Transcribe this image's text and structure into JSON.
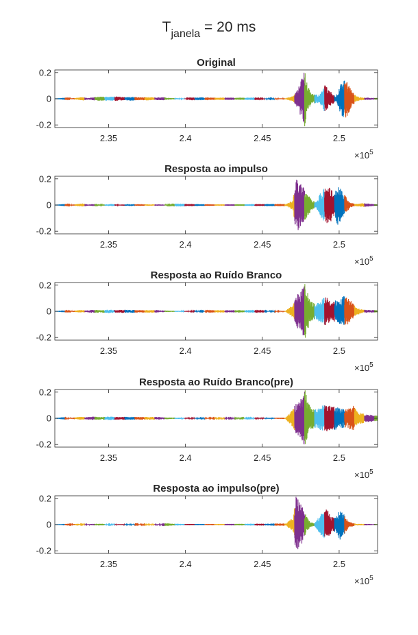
{
  "figure": {
    "title_main": "T",
    "title_sub": "janela",
    "title_rest": " = 20 ms"
  },
  "axes_common": {
    "xlim": [
      231500,
      252500
    ],
    "ylim": [
      -0.22,
      0.22
    ],
    "x_ticks": [
      235000,
      240000,
      245000,
      250000
    ],
    "x_tick_labels": [
      "2.35",
      "2.4",
      "2.45",
      "2.5"
    ],
    "y_ticks": [
      0.2,
      0,
      -0.2
    ],
    "y_tick_labels": [
      "0.2",
      "0",
      "-0.2"
    ],
    "x_exponent_prefix": "×10",
    "x_exponent_power": "5",
    "grid": false
  },
  "segment_colors": [
    "#0072BD",
    "#D95319",
    "#EDB120",
    "#7E2F8E",
    "#77AC30",
    "#4DBEEE",
    "#A2142F"
  ],
  "chart_data": [
    {
      "type": "line",
      "title": "Original",
      "envelope": [
        [
          231500,
          0.0
        ],
        [
          232500,
          0.003
        ],
        [
          233000,
          0.008
        ],
        [
          233300,
          0.014
        ],
        [
          233700,
          0.006
        ],
        [
          234000,
          0.012
        ],
        [
          234500,
          0.016
        ],
        [
          235000,
          0.014
        ],
        [
          235500,
          0.018
        ],
        [
          236000,
          0.012
        ],
        [
          236500,
          0.015
        ],
        [
          237000,
          0.011
        ],
        [
          237500,
          0.013
        ],
        [
          238000,
          0.01
        ],
        [
          238500,
          0.012
        ],
        [
          239000,
          0.006
        ],
        [
          240000,
          0.003
        ],
        [
          242000,
          0.002
        ],
        [
          244000,
          0.002
        ],
        [
          246500,
          0.004
        ],
        [
          247000,
          0.02
        ],
        [
          247300,
          0.07
        ],
        [
          247550,
          0.15
        ],
        [
          247750,
          0.22
        ],
        [
          247950,
          0.1
        ],
        [
          248200,
          0.04
        ],
        [
          248700,
          0.03
        ],
        [
          249100,
          0.11
        ],
        [
          249400,
          0.06
        ],
        [
          249800,
          0.02
        ],
        [
          250100,
          0.12
        ],
        [
          250400,
          0.16
        ],
        [
          250700,
          0.09
        ],
        [
          251100,
          0.02
        ],
        [
          251500,
          0.01
        ],
        [
          252500,
          0.006
        ]
      ]
    },
    {
      "type": "line",
      "title": "Resposta ao impulso",
      "envelope": [
        [
          231500,
          0.0
        ],
        [
          232500,
          0.003
        ],
        [
          233300,
          0.012
        ],
        [
          233700,
          0.004
        ],
        [
          234200,
          0.01
        ],
        [
          234500,
          0.003
        ],
        [
          235200,
          0.009
        ],
        [
          235600,
          0.003
        ],
        [
          236300,
          0.007
        ],
        [
          237300,
          0.006
        ],
        [
          238300,
          0.005
        ],
        [
          239000,
          0.003
        ],
        [
          240000,
          0.002
        ],
        [
          242000,
          0.001
        ],
        [
          246500,
          0.002
        ],
        [
          247000,
          0.04
        ],
        [
          247200,
          0.22
        ],
        [
          247700,
          0.13
        ],
        [
          248000,
          0.08
        ],
        [
          248200,
          0.04
        ],
        [
          248500,
          0.02
        ],
        [
          248800,
          0.1
        ],
        [
          249300,
          0.16
        ],
        [
          249700,
          0.08
        ],
        [
          249900,
          0.16
        ],
        [
          250300,
          0.09
        ],
        [
          250700,
          0.02
        ],
        [
          251000,
          0.01
        ],
        [
          251600,
          0.015
        ],
        [
          252200,
          0.008
        ],
        [
          252500,
          0.004
        ]
      ]
    },
    {
      "type": "line",
      "title": "Resposta ao Ruído Branco",
      "envelope": [
        [
          231500,
          0.0
        ],
        [
          232500,
          0.003
        ],
        [
          233200,
          0.01
        ],
        [
          233500,
          0.007
        ],
        [
          234000,
          0.012
        ],
        [
          234500,
          0.009
        ],
        [
          235000,
          0.013
        ],
        [
          235500,
          0.01
        ],
        [
          236000,
          0.012
        ],
        [
          237000,
          0.009
        ],
        [
          238000,
          0.01
        ],
        [
          239000,
          0.005
        ],
        [
          240000,
          0.004
        ],
        [
          242000,
          0.002
        ],
        [
          244000,
          0.002
        ],
        [
          246500,
          0.004
        ],
        [
          247000,
          0.05
        ],
        [
          247200,
          0.12
        ],
        [
          247500,
          0.15
        ],
        [
          247800,
          0.22
        ],
        [
          248100,
          0.08
        ],
        [
          248500,
          0.06
        ],
        [
          248900,
          0.1
        ],
        [
          249200,
          0.11
        ],
        [
          249500,
          0.07
        ],
        [
          249900,
          0.09
        ],
        [
          250300,
          0.12
        ],
        [
          250700,
          0.09
        ],
        [
          251100,
          0.03
        ],
        [
          251600,
          0.012
        ],
        [
          252500,
          0.008
        ]
      ]
    },
    {
      "type": "line",
      "title": "Resposta ao Ruído Branco(pre)",
      "envelope": [
        [
          231500,
          0.0
        ],
        [
          232500,
          0.004
        ],
        [
          233200,
          0.012
        ],
        [
          233500,
          0.008
        ],
        [
          234000,
          0.013
        ],
        [
          234500,
          0.009
        ],
        [
          235000,
          0.014
        ],
        [
          235500,
          0.01
        ],
        [
          236000,
          0.012
        ],
        [
          237000,
          0.01
        ],
        [
          238000,
          0.011
        ],
        [
          239000,
          0.006
        ],
        [
          240000,
          0.004
        ],
        [
          242000,
          0.003
        ],
        [
          244000,
          0.003
        ],
        [
          246500,
          0.005
        ],
        [
          247000,
          0.07
        ],
        [
          247200,
          0.12
        ],
        [
          247500,
          0.15
        ],
        [
          247800,
          0.22
        ],
        [
          248100,
          0.09
        ],
        [
          248500,
          0.07
        ],
        [
          248900,
          0.1
        ],
        [
          249300,
          0.1
        ],
        [
          249700,
          0.09
        ],
        [
          250100,
          0.08
        ],
        [
          250500,
          0.07
        ],
        [
          250900,
          0.1
        ],
        [
          251200,
          0.05
        ],
        [
          251800,
          0.03
        ],
        [
          252500,
          0.02
        ]
      ]
    },
    {
      "type": "line",
      "title": "Resposta ao impulso(pre)",
      "envelope": [
        [
          231500,
          0.0
        ],
        [
          232500,
          0.002
        ],
        [
          233000,
          0.008
        ],
        [
          233200,
          0.002
        ],
        [
          234000,
          0.006
        ],
        [
          234500,
          0.007
        ],
        [
          235000,
          0.003
        ],
        [
          236000,
          0.004
        ],
        [
          237000,
          0.003
        ],
        [
          238000,
          0.004
        ],
        [
          239000,
          0.002
        ],
        [
          240000,
          0.001
        ],
        [
          242000,
          0.001
        ],
        [
          246500,
          0.002
        ],
        [
          247000,
          0.06
        ],
        [
          247200,
          0.22
        ],
        [
          247600,
          0.14
        ],
        [
          247900,
          0.06
        ],
        [
          248100,
          0.02
        ],
        [
          248400,
          0.01
        ],
        [
          248800,
          0.08
        ],
        [
          249200,
          0.12
        ],
        [
          249500,
          0.06
        ],
        [
          249800,
          0.06
        ],
        [
          250100,
          0.13
        ],
        [
          250400,
          0.06
        ],
        [
          250700,
          0.02
        ],
        [
          251100,
          0.006
        ],
        [
          251700,
          0.006
        ],
        [
          252500,
          0.004
        ]
      ]
    }
  ]
}
